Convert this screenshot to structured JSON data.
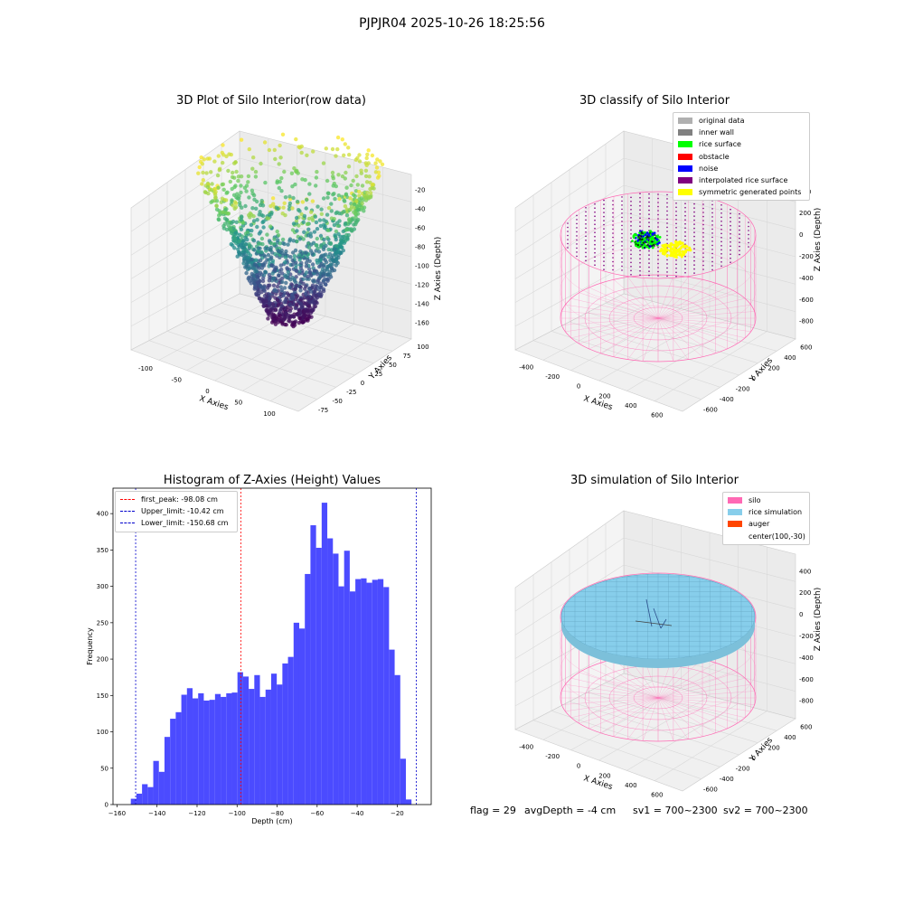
{
  "suptitle": "PJPJR04 2025-10-26 18:25:56",
  "colors": {
    "hist_bar": "#4b4bff",
    "peak_line": "#ff0000",
    "limit_line": "#0000cc",
    "viridis_dark": "#440154",
    "viridis_mid": "#21918c",
    "viridis_light": "#fde725",
    "silo_pink": "#ff69b4",
    "rice_blue": "#87ceeb",
    "auger_orange": "#ff4500"
  },
  "panel1": {
    "title": "3D Plot of Silo Interior(row data)",
    "xlabel": "X Axies",
    "ylabel": "Y Axies",
    "zlabel": "Z Axies (Depth)",
    "xticks": [
      "-100",
      "-50",
      "0",
      "50",
      "100"
    ],
    "yticks": [
      "100",
      "75",
      "50",
      "25",
      "0",
      "-25",
      "-50",
      "-75"
    ],
    "zticks": [
      "-20",
      "-40",
      "-60",
      "-80",
      "-100",
      "-120",
      "-140",
      "-160"
    ]
  },
  "panel2": {
    "title": "3D classify of Silo Interior",
    "xlabel": "X Axies",
    "ylabel": "Y Axies",
    "zlabel": "Z Axies (Depth)",
    "xticks": [
      "-400",
      "-200",
      "0",
      "200",
      "400",
      "600"
    ],
    "yticks": [
      "600",
      "400",
      "200",
      "0",
      "-200",
      "-400",
      "-600"
    ],
    "zticks": [
      "400",
      "200",
      "0",
      "-200",
      "-400",
      "-600",
      "-800"
    ],
    "legend": [
      {
        "label": "original data",
        "color": "#b0b0b0"
      },
      {
        "label": "inner wall",
        "color": "#808080"
      },
      {
        "label": "rice surface",
        "color": "#00ff00"
      },
      {
        "label": "obstacle",
        "color": "#ff0000"
      },
      {
        "label": "noise",
        "color": "#0000ff"
      },
      {
        "label": "interpolated rice surface",
        "color": "#800080"
      },
      {
        "label": "symmetric generated points",
        "color": "#ffff00"
      }
    ]
  },
  "panel3": {
    "title": "Histogram of Z-Axies (Height) Values",
    "xlabel": "Depth (cm)",
    "ylabel": "Frequency",
    "legend": [
      {
        "label": "first_peak: -98.08 cm",
        "color": "#ff0000"
      },
      {
        "label": "Upper_limit: -10.42 cm",
        "color": "#0000cc"
      },
      {
        "label": "Lower_limit: -150.68 cm",
        "color": "#0000cc"
      }
    ]
  },
  "panel4": {
    "title": "3D simulation of Silo Interior",
    "xlabel": "X Axies",
    "ylabel": "Y Axies",
    "zlabel": "Z Axies (Depth)",
    "xticks": [
      "-400",
      "-200",
      "0",
      "200",
      "400",
      "600"
    ],
    "yticks": [
      "600",
      "400",
      "200",
      "0",
      "-200",
      "-400",
      "-600"
    ],
    "zticks": [
      "400",
      "200",
      "0",
      "-200",
      "-400",
      "-600",
      "-800"
    ],
    "legend": [
      {
        "label": "silo",
        "color": "#ff69b4"
      },
      {
        "label": "rice simulation",
        "color": "#87ceeb"
      },
      {
        "label": "auger",
        "color": "#ff4500"
      },
      {
        "label": "center(100,-30)",
        "color": ""
      }
    ]
  },
  "footer": {
    "flag": "flag = 29",
    "avg_depth": "avgDepth = -4 cm",
    "sv1": "sv1 = 700~2300",
    "sv2": "sv2 = 700~2300"
  },
  "chart_data": [
    {
      "type": "scatter",
      "title": "3D Plot of Silo Interior(row data)",
      "xlabel": "X Axies",
      "ylabel": "Y Axies",
      "zlabel": "Z Axies (Depth)",
      "xlim": [
        -130,
        110
      ],
      "ylim": [
        -90,
        110
      ],
      "zlim": [
        -170,
        -10
      ]
    },
    {
      "type": "scatter",
      "title": "3D classify of Silo Interior",
      "xlabel": "X Axies",
      "ylabel": "Y Axies",
      "zlabel": "Z Axies (Depth)",
      "xlim": [
        -500,
        700
      ],
      "ylim": [
        -700,
        700
      ],
      "zlim": [
        -900,
        450
      ]
    },
    {
      "type": "bar",
      "title": "Histogram of Z-Axies (Height) Values",
      "xlabel": "Depth (cm)",
      "ylabel": "Frequency",
      "xlim": [
        -162,
        -3
      ],
      "ylim": [
        0,
        435
      ],
      "xticks": [
        -160,
        -140,
        -120,
        -100,
        -80,
        -60,
        -40,
        -20
      ],
      "yticks": [
        0,
        50,
        100,
        150,
        200,
        250,
        300,
        350,
        400
      ],
      "bin_start": -153.1,
      "bin_width": 2.805,
      "values": [
        8,
        15,
        28,
        24,
        60,
        45,
        93,
        118,
        127,
        151,
        160,
        146,
        153,
        143,
        144,
        152,
        148,
        153,
        154,
        182,
        176,
        159,
        178,
        148,
        158,
        180,
        165,
        194,
        203,
        250,
        242,
        317,
        384,
        353,
        415,
        366,
        345,
        300,
        349,
        293,
        310,
        311,
        305,
        309,
        310,
        299,
        213,
        178,
        63,
        7
      ],
      "vlines": [
        {
          "name": "first_peak",
          "x": -98.08
        },
        {
          "name": "Upper_limit",
          "x": -10.42
        },
        {
          "name": "Lower_limit",
          "x": -150.68
        }
      ]
    },
    {
      "type": "scatter",
      "title": "3D simulation of Silo Interior",
      "xlabel": "X Axies",
      "ylabel": "Y Axies",
      "zlabel": "Z Axies (Depth)",
      "xlim": [
        -500,
        700
      ],
      "ylim": [
        -700,
        700
      ],
      "zlim": [
        -900,
        450
      ]
    }
  ]
}
